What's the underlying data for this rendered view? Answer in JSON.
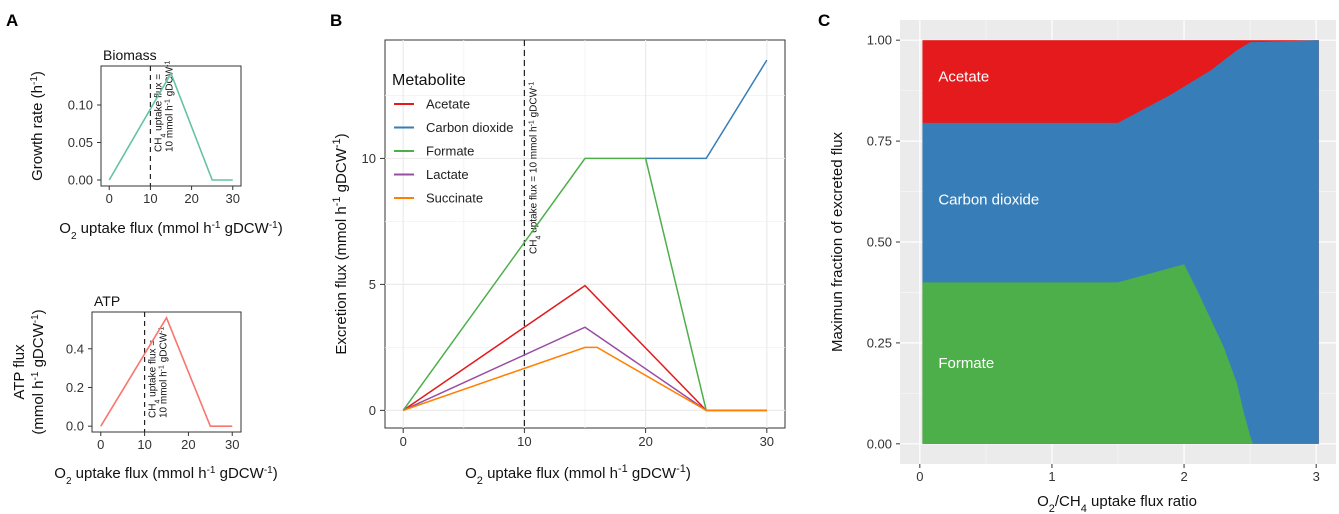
{
  "panels": {
    "a": "A",
    "b": "B",
    "c": "C"
  },
  "colors": {
    "acetate": "#e41a1c",
    "carbon_dioxide": "#377eb8",
    "formate": "#4daf4a",
    "lactate": "#984ea3",
    "succinate": "#ff7f00",
    "biomass_line": "#66c2a5",
    "atp_line": "#f8766d",
    "grid": "#ebebeb",
    "panel_c_bg": "#ebebeb"
  },
  "chart_data": [
    {
      "id": "A1",
      "type": "line",
      "title": "Biomass",
      "xlabel_main": "O",
      "xlabel_sub": "2",
      "xlabel_rest": " uptake flux (mmol h",
      "xlabel_sup1": "-1",
      "xlabel_mid": " gDCW",
      "xlabel_sup2": "-1",
      "xlabel_end": ")",
      "ylabel_main": "Growth rate (h",
      "ylabel_sup": "-1",
      "ylabel_end": ")",
      "xlim": [
        -2,
        32
      ],
      "ylim": [
        -0.008,
        0.152
      ],
      "xticks": [
        "0",
        "10",
        "20",
        "30"
      ],
      "xtick_values": [
        0,
        10,
        20,
        30
      ],
      "yticks": [
        "0.00",
        "0.05",
        "0.10"
      ],
      "ytick_values": [
        0,
        0.05,
        0.1
      ],
      "vline_x": 10,
      "annotation_line1_main": "CH",
      "annotation_line1_sub": "4",
      "annotation_line1_rest": " uptake flux =",
      "annotation_line2_main": "10 mmol h",
      "annotation_line2_sup1": "-1",
      "annotation_line2_mid": " gDCW",
      "annotation_line2_sup2": "-1",
      "series": [
        {
          "x": [
            0,
            15,
            25,
            30
          ],
          "y": [
            0,
            0.142,
            0,
            0
          ]
        }
      ]
    },
    {
      "id": "A2",
      "type": "line",
      "title": "ATP",
      "xlabel_main": "O",
      "xlabel_sub": "2",
      "xlabel_rest": " uptake flux (mmol h",
      "xlabel_sup1": "-1",
      "xlabel_mid": " gDCW",
      "xlabel_sup2": "-1",
      "xlabel_end": ")",
      "ylabel_line1": "ATP flux",
      "ylabel_main": "(mmol h",
      "ylabel_sup1": "-1",
      "ylabel_mid": " gDCW",
      "ylabel_sup2": "-1",
      "ylabel_end": ")",
      "xlim": [
        -2,
        32
      ],
      "ylim": [
        -0.03,
        0.59
      ],
      "xticks": [
        "0",
        "10",
        "20",
        "30"
      ],
      "xtick_values": [
        0,
        10,
        20,
        30
      ],
      "yticks": [
        "0.0",
        "0.2",
        "0.4"
      ],
      "ytick_values": [
        0,
        0.2,
        0.4
      ],
      "vline_x": 10,
      "annotation_line1_main": "CH",
      "annotation_line1_sub": "4",
      "annotation_line1_rest": " uptake flux =",
      "annotation_line2_main": "10 mmol h",
      "annotation_line2_sup1": "-1",
      "annotation_line2_mid": " gDCW",
      "annotation_line2_sup2": "-1",
      "series": [
        {
          "x": [
            0,
            15,
            25,
            30
          ],
          "y": [
            0,
            0.56,
            0,
            0
          ]
        }
      ]
    },
    {
      "id": "B",
      "type": "line",
      "xlabel_main": "O",
      "xlabel_sub": "2",
      "xlabel_rest": " uptake flux (mmol h",
      "xlabel_sup1": "-1",
      "xlabel_mid": " gDCW",
      "xlabel_sup2": "-1",
      "xlabel_end": ")",
      "ylabel_main": "Excretion flux (mmol h",
      "ylabel_sup1": "-1",
      "ylabel_mid": " gDCW",
      "ylabel_sup2": "-1",
      "ylabel_end": ")",
      "xlim": [
        -1.5,
        31.5
      ],
      "ylim": [
        -0.7,
        14.7
      ],
      "xticks": [
        "0",
        "10",
        "20",
        "30"
      ],
      "xtick_values": [
        0,
        10,
        20,
        30
      ],
      "yticks": [
        "0",
        "5",
        "10"
      ],
      "ytick_values": [
        0,
        5,
        10
      ],
      "grid": true,
      "vline_x": 10,
      "annotation_main": "CH",
      "annotation_sub": "4",
      "annotation_rest": " uptake flux = 10 mmol h",
      "annotation_sup1": "-1",
      "annotation_mid": " gDCW",
      "annotation_sup2": "-1",
      "legend_title": "Metabolite",
      "legend_position": "top-left",
      "series": [
        {
          "name": "Acetate",
          "color_key": "acetate",
          "x": [
            0,
            15,
            25,
            30
          ],
          "y": [
            0,
            4.95,
            0,
            0
          ]
        },
        {
          "name": "Carbon dioxide",
          "color_key": "carbon_dioxide",
          "x": [
            20,
            25,
            30
          ],
          "y": [
            10,
            10,
            13.9
          ]
        },
        {
          "name": "Formate",
          "color_key": "formate",
          "x": [
            0,
            15,
            20,
            25,
            30
          ],
          "y": [
            0,
            10,
            10,
            0,
            0
          ]
        },
        {
          "name": "Lactate",
          "color_key": "lactate",
          "x": [
            0,
            15,
            25,
            30
          ],
          "y": [
            0,
            3.3,
            0,
            0
          ]
        },
        {
          "name": "Succinate",
          "color_key": "succinate",
          "x": [
            0,
            15,
            16,
            25,
            30
          ],
          "y": [
            0,
            2.5,
            2.5,
            0,
            0
          ]
        }
      ]
    },
    {
      "id": "C",
      "type": "area",
      "xlabel_main": "O",
      "xlabel_sub1": "2",
      "xlabel_mid": "/CH",
      "xlabel_sub2": "4",
      "xlabel_rest": " uptake flux ratio",
      "ylabel": "Maximun fraction of excreted flux",
      "xlim": [
        -0.15,
        3.15
      ],
      "ylim": [
        -0.05,
        1.05
      ],
      "xticks": [
        "0",
        "1",
        "2",
        "3"
      ],
      "xtick_values": [
        0,
        1,
        2,
        3
      ],
      "yticks": [
        "0.00",
        "0.25",
        "0.50",
        "0.75",
        "1.00"
      ],
      "ytick_values": [
        0,
        0.25,
        0.5,
        0.75,
        1
      ],
      "grid": true,
      "x_range": [
        0.02,
        3.02
      ],
      "formate_top": {
        "x": [
          0.02,
          1.5,
          2.0,
          2.1,
          2.2,
          2.3,
          2.4,
          2.45,
          2.5,
          2.52,
          2.55,
          3.02
        ],
        "y": [
          0.4,
          0.4,
          0.445,
          0.38,
          0.31,
          0.24,
          0.15,
          0.08,
          0.02,
          0.0,
          0.0,
          0.0
        ]
      },
      "co2_top": {
        "x": [
          0.02,
          1.5,
          1.7,
          1.9,
          2.0,
          2.1,
          2.2,
          2.3,
          2.4,
          2.5,
          3.02
        ],
        "y": [
          0.795,
          0.795,
          0.83,
          0.865,
          0.885,
          0.905,
          0.925,
          0.95,
          0.975,
          0.995,
          1.0
        ]
      },
      "area_labels": [
        {
          "text": "Acetate",
          "color_key": "acetate",
          "x": 0.14,
          "y": 0.91
        },
        {
          "text": "Carbon dioxide",
          "color_key": "carbon_dioxide",
          "x": 0.14,
          "y": 0.605
        },
        {
          "text": "Formate",
          "color_key": "formate",
          "x": 0.14,
          "y": 0.2
        }
      ]
    }
  ]
}
